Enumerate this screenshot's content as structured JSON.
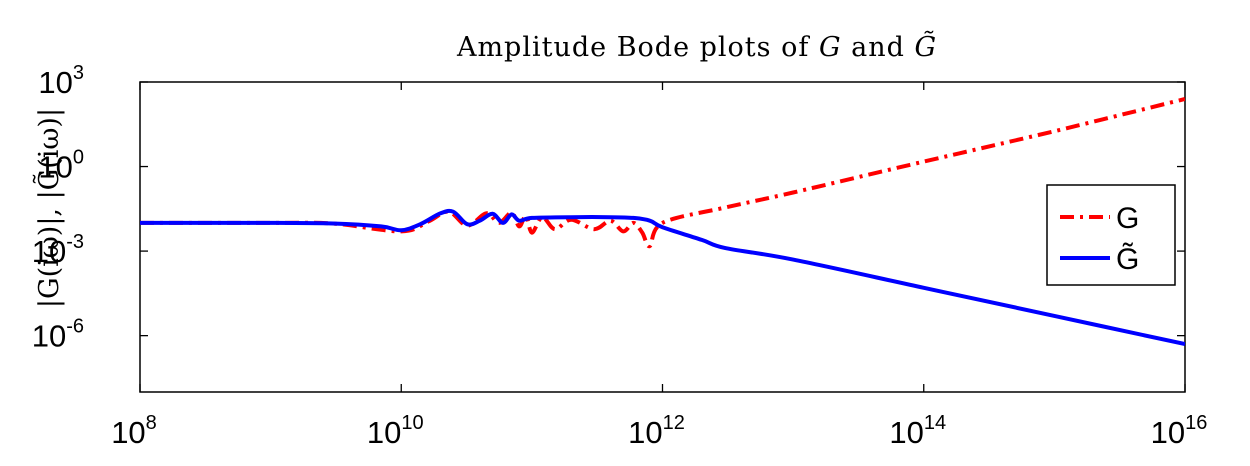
{
  "chart_data": {
    "type": "line",
    "title": "Amplitude Bode plots of G and G̃",
    "title_parts": {
      "prefix": "Amplitude Bode plots of ",
      "g": "G",
      "and": " and ",
      "gt": "G̃"
    },
    "xlabel": "",
    "ylabel": "|G(iω)|, |G̃(iω)|",
    "x_scale": "log",
    "y_scale": "log",
    "xlim": [
      100000000.0,
      1e+16
    ],
    "ylim": [
      1e-08,
      1000.0
    ],
    "x_ticks": [
      {
        "base": "10",
        "exp": "8",
        "value": 100000000.0
      },
      {
        "base": "10",
        "exp": "10",
        "value": 10000000000.0
      },
      {
        "base": "10",
        "exp": "12",
        "value": 1000000000000.0
      },
      {
        "base": "10",
        "exp": "14",
        "value": 100000000000000.0
      },
      {
        "base": "10",
        "exp": "16",
        "value": 1e+16
      }
    ],
    "y_ticks": [
      {
        "base": "10",
        "exp": "3",
        "value": 1000.0
      },
      {
        "base": "10",
        "exp": "0",
        "value": 1
      },
      {
        "base": "10",
        "exp": "-3",
        "value": 0.001
      },
      {
        "base": "10",
        "exp": "-6",
        "value": 1e-06
      }
    ],
    "grid": false,
    "legend": {
      "placement": "right",
      "entries": [
        "G",
        "G̃"
      ]
    },
    "series": [
      {
        "name": "G",
        "color": "#ff0000",
        "style": "dash-dot",
        "x": [
          100000000.0,
          1000000000.0,
          3000000000.0,
          10000000000.0,
          16000000000.0,
          23000000000.0,
          32000000000.0,
          45000000000.0,
          56000000000.0,
          70000000000.0,
          80000000000.0,
          90000000000.0,
          100000000000.0,
          120000000000.0,
          150000000000.0,
          200000000000.0,
          300000000000.0,
          400000000000.0,
          500000000000.0,
          600000000000.0,
          700000000000.0,
          800000000000.0,
          1000000000000.0,
          3000000000000.0,
          10000000000000.0,
          100000000000000.0,
          1000000000000000.0,
          1e+16
        ],
        "y": [
          0.01,
          0.01,
          0.0095,
          0.005,
          0.011,
          0.025,
          0.008,
          0.022,
          0.01,
          0.023,
          0.0075,
          0.018,
          0.0045,
          0.016,
          0.006,
          0.013,
          0.006,
          0.012,
          0.005,
          0.01,
          0.0045,
          0.0015,
          0.01,
          0.035,
          0.12,
          1.5,
          18,
          250
        ]
      },
      {
        "name": "G̃",
        "color": "#0000ff",
        "style": "solid",
        "x": [
          100000000.0,
          1000000000.0,
          3000000000.0,
          7000000000.0,
          10000000000.0,
          14000000000.0,
          20000000000.0,
          25000000000.0,
          32000000000.0,
          40000000000.0,
          50000000000.0,
          60000000000.0,
          70000000000.0,
          80000000000.0,
          100000000000.0,
          200000000000.0,
          400000000000.0,
          600000000000.0,
          800000000000.0,
          1000000000000.0,
          2000000000000.0,
          3000000000000.0,
          10000000000000.0,
          100000000000000.0,
          1000000000000000.0,
          1e+16
        ],
        "y": [
          0.01,
          0.01,
          0.0095,
          0.0075,
          0.0055,
          0.009,
          0.022,
          0.025,
          0.009,
          0.012,
          0.021,
          0.01,
          0.02,
          0.012,
          0.015,
          0.016,
          0.016,
          0.015,
          0.012,
          0.007,
          0.0025,
          0.0013,
          0.0005,
          5e-05,
          5e-06,
          5e-07
        ]
      }
    ]
  }
}
